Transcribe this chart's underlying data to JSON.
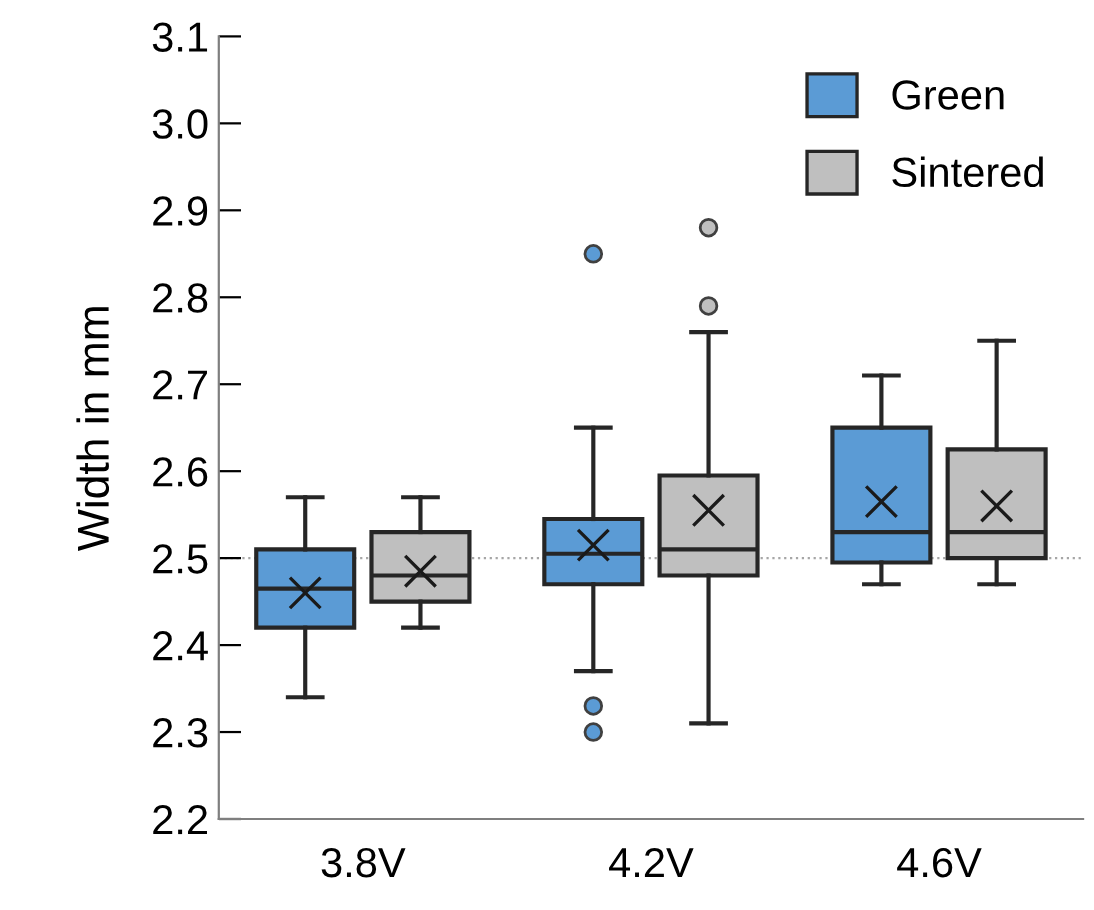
{
  "chart_data": {
    "type": "box",
    "ylabel": "Width in mm",
    "categories": [
      "3.8V",
      "4.2V",
      "4.6V"
    ],
    "ylim": [
      2.2,
      3.1
    ],
    "yticks": [
      2.2,
      2.3,
      2.4,
      2.5,
      2.6,
      2.7,
      2.8,
      2.9,
      {
        "value": 3.0,
        "label": "3.0"
      },
      3.1
    ],
    "grid": false,
    "legend": "top right",
    "ref_lines": [
      {
        "axis": "y",
        "value": 2.5,
        "color": "#a6a6a6",
        "line_style": "dotted"
      }
    ],
    "series": [
      {
        "name": "Green",
        "color": "#5b9bd5",
        "boxes": [
          {
            "low": 2.34,
            "q1": 2.42,
            "median": 2.465,
            "q3": 2.51,
            "high": 2.57,
            "mean": 2.46
          },
          {
            "low": 2.37,
            "q1": 2.47,
            "median": 2.505,
            "q3": 2.545,
            "high": 2.65,
            "mean": 2.515,
            "outliers": [
              2.85,
              2.33,
              2.3
            ]
          },
          {
            "low": 2.47,
            "q1": 2.495,
            "median": 2.53,
            "q3": 2.65,
            "high": 2.71,
            "mean": 2.565
          }
        ]
      },
      {
        "name": "Sintered",
        "color": "#bfbfbf",
        "boxes": [
          {
            "low": 2.42,
            "q1": 2.45,
            "median": 2.48,
            "q3": 2.53,
            "high": 2.57,
            "mean": 2.485
          },
          {
            "low": 2.31,
            "q1": 2.48,
            "median": 2.51,
            "q3": 2.595,
            "high": 2.76,
            "mean": 2.555,
            "outliers": [
              2.88,
              2.79
            ]
          },
          {
            "low": 2.47,
            "q1": 2.5,
            "median": 2.53,
            "q3": 2.625,
            "high": 2.75,
            "mean": 2.56
          }
        ]
      }
    ]
  }
}
